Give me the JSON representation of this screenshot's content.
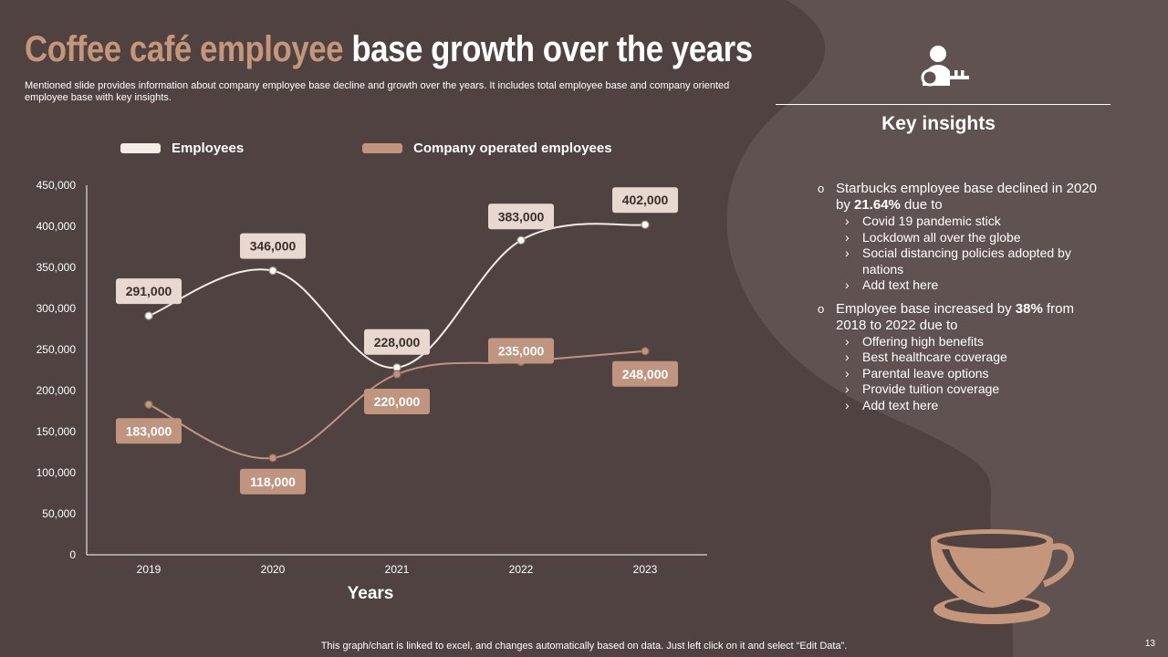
{
  "slide": {
    "title_part1": "Coffee café employee",
    "title_part2": "base growth over the years",
    "subtitle": "Mentioned slide provides information about company employee base decline and growth over the years. It includes total employee base and company oriented employee base with key insights.",
    "footer_note": "This graph/chart is linked to excel,  and changes automatically based on data. Just left click on it and select “Edit Data”.",
    "page_number": "13"
  },
  "icons": {
    "key_icon": "user-key-icon",
    "cup_icon": "coffee-cup-icon"
  },
  "colors": {
    "background": "#4f4240",
    "steam": "#5f5250",
    "accent": "#c4977c",
    "employees_line": "#f5ece6",
    "employees_label_bg": "#e8d8cf",
    "company_line": "#bf9580",
    "company_label_bg": "#bf9580"
  },
  "key_insights": {
    "title": "Key insights",
    "items": [
      {
        "pre": "Starbucks employee base declined in 2020 by ",
        "bold": "21.64%",
        "post": " due to",
        "subs": [
          "Covid 19 pandemic stick",
          "Lockdown all over the globe",
          "Social distancing policies adopted by nations",
          "Add text here"
        ]
      },
      {
        "pre": "Employee base increased by ",
        "bold": "38%",
        "post": " from 2018 to 2022 due to",
        "subs": [
          "Offering high benefits",
          "Best healthcare coverage",
          "Parental leave options",
          "Provide tuition coverage",
          "Add text here"
        ]
      }
    ]
  },
  "chart_data": {
    "type": "line",
    "categories": [
      "2019",
      "2020",
      "2021",
      "2022",
      "2023"
    ],
    "series": [
      {
        "name": "Employees",
        "values": [
          291000,
          346000,
          228000,
          383000,
          402000
        ],
        "labels": [
          "291,000",
          "346,000",
          "228,000",
          "383,000",
          "402,000"
        ]
      },
      {
        "name": "Company operated employees",
        "values": [
          183000,
          118000,
          220000,
          235000,
          248000
        ],
        "labels": [
          "183,000",
          "118,000",
          "220,000",
          "235,000",
          "248,000"
        ]
      }
    ],
    "xlabel": "Years",
    "ylabel": "",
    "ylim": [
      0,
      450000
    ],
    "yticks": [
      "0",
      "50,000",
      "100,000",
      "150,000",
      "200,000",
      "250,000",
      "300,000",
      "350,000",
      "400,000",
      "450,000"
    ],
    "grid": false,
    "smooth": true,
    "legend_position": "top"
  }
}
